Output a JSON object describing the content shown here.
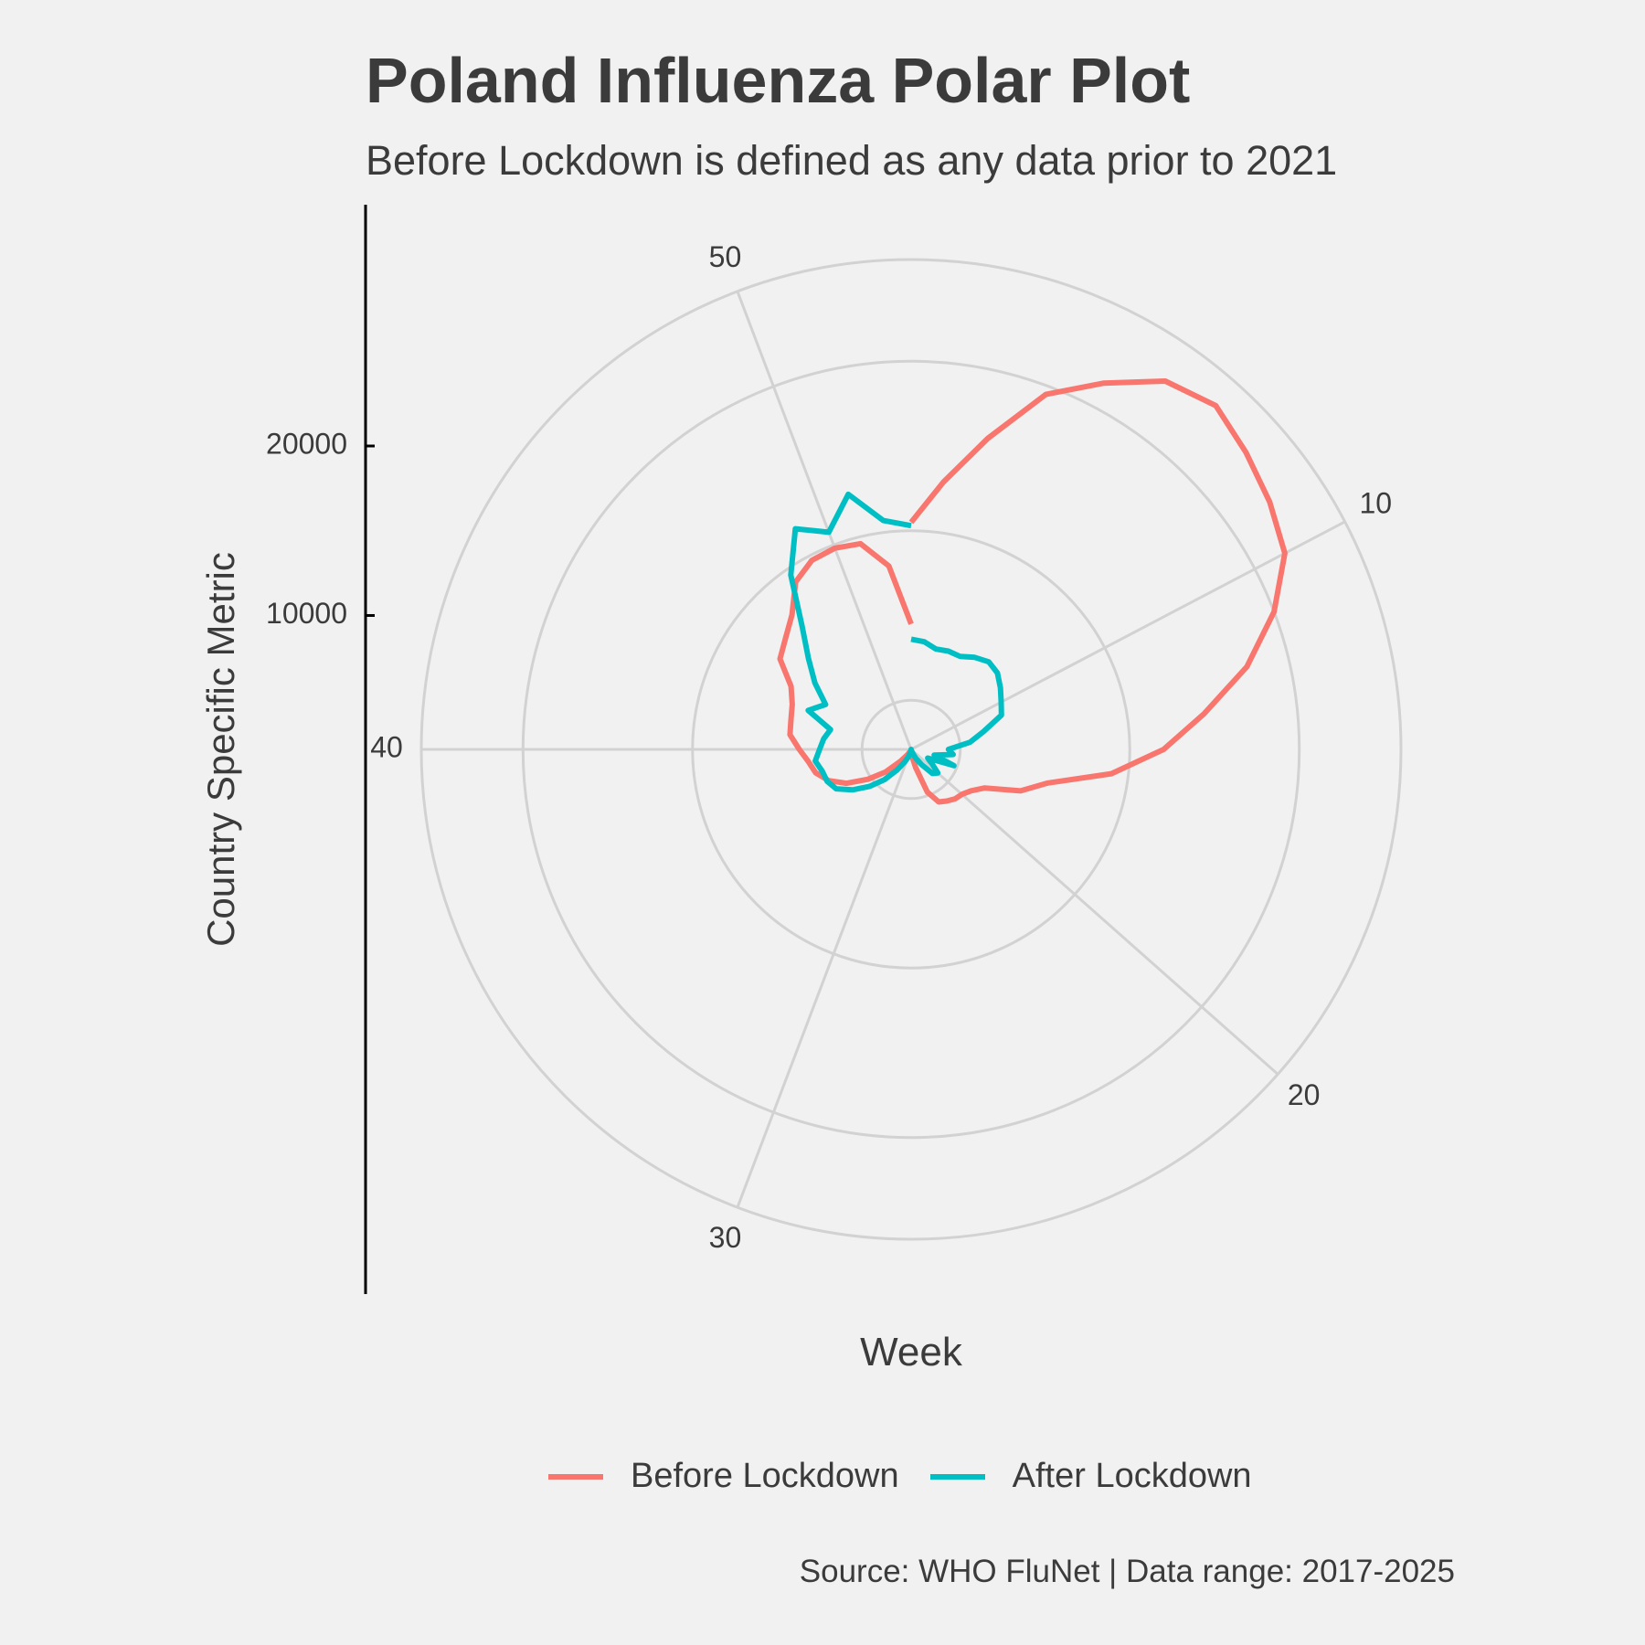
{
  "chart_data": {
    "type": "line",
    "coord": "polar",
    "title": "Poland Influenza Polar Plot",
    "subtitle": "Before Lockdown is defined as any data prior to 2021",
    "xlabel": "Week",
    "ylabel": "Country Specific Metric",
    "caption": "Source: WHO FluNet | Data range: 2017-2025",
    "theta_range": [
      1,
      53
    ],
    "theta_ticks": [
      10,
      20,
      30,
      40,
      50
    ],
    "r_ticks": [
      10000,
      20000
    ],
    "r_range": [
      2100,
      31000
    ],
    "grid": true,
    "legend_position": "bottom",
    "colors": {
      "before": "#f8766d",
      "after": "#00bfc4",
      "grid": "#d2d2d2"
    },
    "series": [
      {
        "name": "Before Lockdown",
        "color": "#f8766d",
        "x": [
          1,
          2,
          3,
          4,
          5,
          6,
          7,
          8,
          9,
          10,
          11,
          12,
          13,
          14,
          15,
          16,
          17,
          18,
          19,
          20,
          21,
          22,
          23,
          24,
          25,
          26,
          27,
          28,
          29,
          30,
          31,
          32,
          33,
          34,
          35,
          36,
          37,
          38,
          39,
          40,
          41,
          42,
          43,
          44,
          45,
          46,
          47,
          48,
          49,
          50,
          51,
          52,
          53
        ],
        "y": [
          15500,
          18000,
          21000,
          24500,
          26500,
          28500,
          29200,
          28500,
          27800,
          27000,
          25000,
          22500,
          19500,
          17000,
          14000,
          10400,
          9000,
          7000,
          6400,
          6100,
          6000,
          5800,
          5600,
          4800,
          3200,
          2500,
          2300,
          2200,
          2300,
          2200,
          2250,
          2500,
          3000,
          4100,
          5200,
          6400,
          7300,
          7900,
          8200,
          8700,
          9300,
          9400,
          9600,
          10100,
          11500,
          12000,
          12700,
          14100,
          14700,
          14800,
          14600,
          13000,
          9500
        ]
      },
      {
        "name": "After Lockdown",
        "color": "#00bfc4",
        "x": [
          1,
          2,
          3,
          4,
          5,
          6,
          7,
          8,
          9,
          10,
          11,
          12,
          13,
          14,
          15,
          16,
          17,
          18,
          19,
          20,
          21,
          22,
          23,
          24,
          25,
          26,
          27,
          28,
          29,
          30,
          31,
          32,
          33,
          34,
          35,
          36,
          37,
          38,
          39,
          40,
          41,
          42,
          43,
          44,
          45,
          46,
          47,
          48,
          49,
          50,
          51,
          52,
          53
        ],
        "y": [
          8600,
          8500,
          8200,
          8300,
          8300,
          8700,
          9000,
          8900,
          8500,
          8100,
          7800,
          6500,
          5600,
          4300,
          4600,
          3500,
          4800,
          3200,
          3600,
          4200,
          4000,
          3200,
          2700,
          2300,
          2150,
          2100,
          2150,
          2200,
          2300,
          2600,
          2950,
          3600,
          4500,
          5400,
          6300,
          7100,
          7400,
          7500,
          7800,
          7500,
          7300,
          7000,
          8600,
          7800,
          9000,
          10200,
          11800,
          14600,
          16800,
          15800,
          17600,
          15700,
          15300
        ]
      }
    ]
  }
}
